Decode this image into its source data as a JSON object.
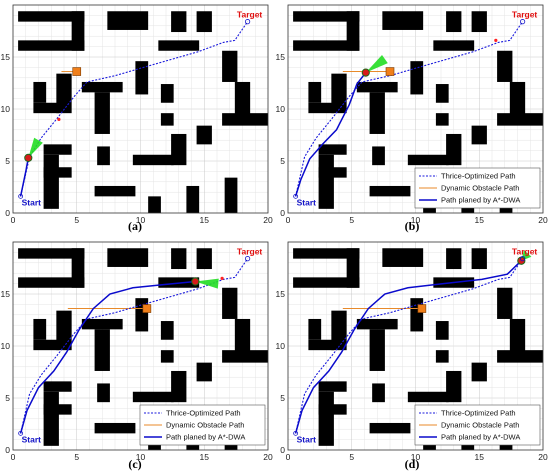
{
  "chart_data": {
    "type": "line",
    "shared": {
      "xlim": [
        0,
        20
      ],
      "ylim": [
        0,
        20
      ],
      "xticks": [
        0,
        5,
        10,
        15,
        20
      ],
      "yticks": [
        0,
        5,
        10,
        15
      ],
      "grid": true,
      "legend_position": "bottom-right",
      "start_label": "Start",
      "target_label": "Target",
      "start": [
        0.6,
        1.6
      ],
      "target": [
        18.4,
        18.4
      ],
      "obstacles": [
        [
          0.4,
          18.4,
          5.6,
          19.4
        ],
        [
          4.6,
          15.6,
          5.6,
          19.4
        ],
        [
          0.4,
          15.6,
          5.6,
          16.6
        ],
        [
          7.4,
          17.6,
          10.6,
          19.4
        ],
        [
          12.4,
          17.4,
          13.6,
          19.4
        ],
        [
          14.4,
          17.4,
          15.6,
          19.4
        ],
        [
          11.4,
          15.6,
          14.6,
          16.6
        ],
        [
          1.6,
          10.6,
          2.6,
          12.6
        ],
        [
          1.6,
          9.6,
          3.6,
          10.6
        ],
        [
          3.4,
          9.6,
          4.6,
          13.4
        ],
        [
          5.4,
          11.6,
          8.6,
          12.6
        ],
        [
          6.4,
          7.6,
          7.6,
          11.6
        ],
        [
          9.6,
          11.4,
          10.6,
          14.6
        ],
        [
          11.6,
          10.6,
          12.6,
          12.4
        ],
        [
          11.6,
          8.4,
          12.6,
          9.6
        ],
        [
          16.4,
          12.6,
          17.6,
          15.6
        ],
        [
          17.4,
          9.4,
          18.6,
          12.6
        ],
        [
          16.4,
          8.4,
          20.0,
          9.6
        ],
        [
          14.4,
          6.6,
          15.6,
          8.4
        ],
        [
          2.4,
          5.6,
          4.6,
          6.6
        ],
        [
          2.4,
          0.4,
          3.6,
          5.6
        ],
        [
          2.4,
          3.4,
          4.6,
          4.4
        ],
        [
          6.6,
          4.6,
          7.6,
          6.4
        ],
        [
          6.4,
          1.6,
          9.6,
          2.6
        ],
        [
          9.4,
          4.6,
          12.6,
          5.6
        ],
        [
          12.4,
          4.6,
          13.6,
          7.6
        ],
        [
          10.6,
          0.0,
          11.6,
          1.6
        ],
        [
          13.6,
          0.0,
          14.6,
          2.6
        ],
        [
          16.6,
          0.0,
          17.6,
          3.4
        ]
      ],
      "series_names": [
        "Thrice-Optimized Path",
        "Dynamic Obstacle Path",
        "Path planed by A*-DWA"
      ],
      "series_colors": [
        "#1a1adc",
        "#e88a2a",
        "#0a0acc"
      ],
      "thrice_path": [
        [
          0.6,
          1.6
        ],
        [
          1.0,
          3.8
        ],
        [
          1.3,
          5.4
        ],
        [
          2.2,
          7.2
        ],
        [
          3.4,
          9.0
        ],
        [
          4.8,
          11.2
        ],
        [
          5.8,
          12.6
        ],
        [
          8.0,
          13.2
        ],
        [
          10.5,
          14.1
        ],
        [
          12.5,
          14.8
        ],
        [
          14.5,
          15.5
        ],
        [
          16.5,
          16.4
        ],
        [
          17.4,
          16.6
        ],
        [
          18.4,
          18.4
        ]
      ],
      "obstacle_path": [
        [
          3.8,
          13.6
        ],
        [
          18.5,
          13.6
        ]
      ],
      "target_marker": [
        18.4,
        18.4
      ]
    },
    "panels": [
      {
        "caption": "(a)",
        "agent": [
          1.2,
          5.3
        ],
        "obstacle": [
          5.0,
          13.6
        ],
        "obstacle_path_range": [
          3.8,
          5.0
        ],
        "fan_tip": [
          2.0,
          7.0
        ],
        "planned": [
          [
            0.6,
            1.6
          ],
          [
            0.8,
            2.8
          ],
          [
            1.0,
            4.0
          ],
          [
            1.2,
            5.3
          ]
        ],
        "red_dots": [
          [
            3.6,
            9.0
          ]
        ],
        "show_legend": false
      },
      {
        "caption": "(b)",
        "agent": [
          6.1,
          13.5
        ],
        "obstacle": [
          8.0,
          13.6
        ],
        "obstacle_path_range": [
          4.3,
          8.0
        ],
        "fan_tip": [
          7.6,
          14.8
        ],
        "planned": [
          [
            0.6,
            1.6
          ],
          [
            1.0,
            3.2
          ],
          [
            1.7,
            5.2
          ],
          [
            2.7,
            6.6
          ],
          [
            3.8,
            8.0
          ],
          [
            4.8,
            10.4
          ],
          [
            5.4,
            12.4
          ],
          [
            6.1,
            13.5
          ]
        ],
        "red_dots": [
          [
            16.3,
            16.6
          ]
        ],
        "show_legend": true
      },
      {
        "caption": "(c)",
        "agent": [
          14.3,
          16.2
        ],
        "obstacle": [
          10.5,
          13.6
        ],
        "obstacle_path_range": [
          4.3,
          10.5
        ],
        "fan_tip": [
          16.1,
          16.0
        ],
        "planned": [
          [
            0.6,
            1.6
          ],
          [
            1.1,
            3.8
          ],
          [
            2.0,
            6.0
          ],
          [
            3.2,
            7.6
          ],
          [
            4.2,
            9.4
          ],
          [
            5.2,
            11.6
          ],
          [
            6.3,
            13.6
          ],
          [
            7.6,
            15.0
          ],
          [
            9.4,
            15.6
          ],
          [
            11.8,
            15.9
          ],
          [
            14.3,
            16.2
          ]
        ],
        "red_dots": [
          [
            16.4,
            16.5
          ]
        ],
        "show_legend": true
      },
      {
        "caption": "(d)",
        "agent": [
          18.3,
          18.2
        ],
        "obstacle": [
          10.5,
          13.6
        ],
        "obstacle_path_range": [
          4.3,
          10.5
        ],
        "fan_tip": [
          18.8,
          18.9
        ],
        "planned": [
          [
            0.6,
            1.6
          ],
          [
            1.1,
            3.8
          ],
          [
            2.0,
            6.0
          ],
          [
            3.2,
            7.6
          ],
          [
            4.2,
            9.4
          ],
          [
            5.2,
            11.6
          ],
          [
            6.3,
            13.6
          ],
          [
            7.6,
            15.0
          ],
          [
            9.4,
            15.6
          ],
          [
            12.2,
            16.0
          ],
          [
            15.2,
            16.4
          ],
          [
            17.2,
            16.9
          ],
          [
            18.3,
            18.2
          ]
        ],
        "red_dots": [],
        "show_legend": true
      }
    ]
  }
}
